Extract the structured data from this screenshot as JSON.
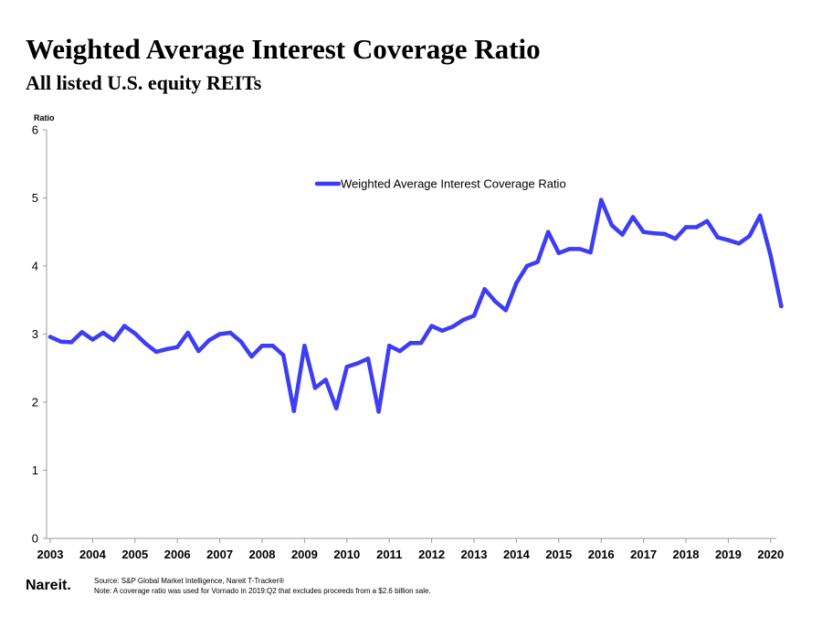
{
  "header": {
    "title": "Weighted Average Interest Coverage Ratio",
    "subtitle": "All listed U.S. equity REITs"
  },
  "footer": {
    "logo": "Nareit.",
    "source": "Source: S&P Global Market Intelligence, Nareit T-Tracker®",
    "note": "Note: A coverage ratio was used for Vornado in 2019:Q2 that excludes proceeds from a $2.6 billion sale."
  },
  "chart_data": {
    "type": "line",
    "title": "Weighted Average Interest Coverage Ratio",
    "subtitle": "All listed U.S. equity REITs",
    "ylabel": "Ratio",
    "xlabel": "",
    "ylim": [
      0,
      6
    ],
    "yticks": [
      "0",
      "1",
      "2",
      "3",
      "4",
      "5",
      "6"
    ],
    "xticks": [
      "2003",
      "2004",
      "2005",
      "2006",
      "2007",
      "2008",
      "2009",
      "2010",
      "2011",
      "2012",
      "2013",
      "2014",
      "2015",
      "2016",
      "2017",
      "2018",
      "2019",
      "2020"
    ],
    "grid": false,
    "legend_position": "top-center",
    "line_color": "#3d3df5",
    "series": [
      {
        "name": "Weighted Average Interest Coverage Ratio",
        "x": [
          "2003:Q1",
          "2003:Q2",
          "2003:Q3",
          "2003:Q4",
          "2004:Q1",
          "2004:Q2",
          "2004:Q3",
          "2004:Q4",
          "2005:Q1",
          "2005:Q2",
          "2005:Q3",
          "2005:Q4",
          "2006:Q1",
          "2006:Q2",
          "2006:Q3",
          "2006:Q4",
          "2007:Q1",
          "2007:Q2",
          "2007:Q3",
          "2007:Q4",
          "2008:Q1",
          "2008:Q2",
          "2008:Q3",
          "2008:Q4",
          "2009:Q1",
          "2009:Q2",
          "2009:Q3",
          "2009:Q4",
          "2010:Q1",
          "2010:Q2",
          "2010:Q3",
          "2010:Q4",
          "2011:Q1",
          "2011:Q2",
          "2011:Q3",
          "2011:Q4",
          "2012:Q1",
          "2012:Q2",
          "2012:Q3",
          "2012:Q4",
          "2013:Q1",
          "2013:Q2",
          "2013:Q3",
          "2013:Q4",
          "2014:Q1",
          "2014:Q2",
          "2014:Q3",
          "2014:Q4",
          "2015:Q1",
          "2015:Q2",
          "2015:Q3",
          "2015:Q4",
          "2016:Q1",
          "2016:Q2",
          "2016:Q3",
          "2016:Q4",
          "2017:Q1",
          "2017:Q2",
          "2017:Q3",
          "2017:Q4",
          "2018:Q1",
          "2018:Q2",
          "2018:Q3",
          "2018:Q4",
          "2019:Q1",
          "2019:Q2",
          "2019:Q3",
          "2019:Q4",
          "2020:Q1",
          "2020:Q2"
        ],
        "values": [
          2.96,
          2.89,
          2.88,
          3.03,
          2.92,
          3.02,
          2.91,
          3.12,
          3.01,
          2.86,
          2.74,
          2.78,
          2.81,
          3.02,
          2.75,
          2.91,
          3.0,
          3.02,
          2.89,
          2.67,
          2.83,
          2.83,
          2.69,
          1.87,
          2.83,
          2.21,
          2.33,
          1.91,
          2.52,
          2.57,
          2.64,
          1.86,
          2.83,
          2.75,
          2.87,
          2.87,
          3.12,
          3.05,
          3.11,
          3.21,
          3.27,
          3.66,
          3.48,
          3.35,
          3.75,
          4.0,
          4.06,
          4.5,
          4.19,
          4.25,
          4.25,
          4.2,
          4.97,
          4.6,
          4.46,
          4.72,
          4.5,
          4.48,
          4.47,
          4.4,
          4.57,
          4.57,
          4.66,
          4.42,
          4.38,
          4.33,
          4.44,
          4.74,
          4.15,
          3.41
        ]
      }
    ]
  }
}
